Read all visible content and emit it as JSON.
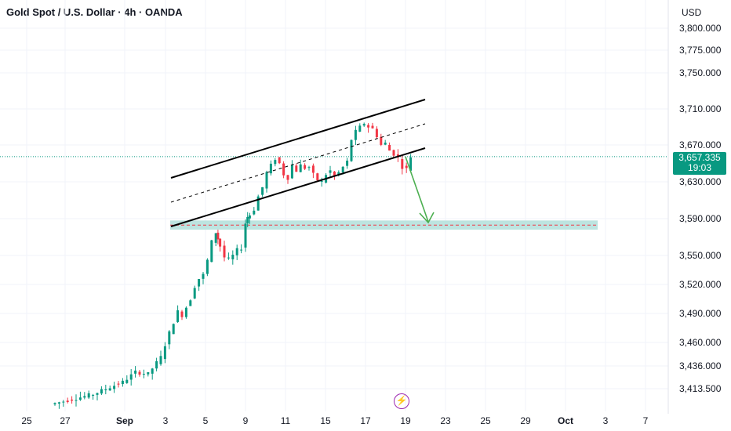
{
  "header": {
    "title": "Gold Spot / U.S. Dollar · 4h · OANDA",
    "currency": "USD"
  },
  "last_price": {
    "value": "3,657.335",
    "countdown": "19:03",
    "color": "#089981"
  },
  "event_icon": "lightning-icon",
  "colors": {
    "up": "#089981",
    "down": "#f23645",
    "channel": "#000000",
    "zone": "#b2dfdb",
    "arrow": "#4caf50"
  },
  "chart_data": {
    "type": "candlestick",
    "y_ticks": [
      "3,800.000",
      "3,775.000",
      "3,750.000",
      "3,710.000",
      "3,670.000",
      "3,630.000",
      "3,590.000",
      "3,550.000",
      "3,520.000",
      "3,490.000",
      "3,460.000",
      "3,436.000",
      "3,413.500"
    ],
    "x_ticks": [
      "25",
      "27",
      "Sep",
      "3",
      "5",
      "9",
      "11",
      "15",
      "17",
      "19",
      "23",
      "25",
      "29",
      "Oct",
      "3",
      "7"
    ],
    "price_path": [
      [
        0,
        3398
      ],
      [
        6,
        3404
      ],
      [
        10,
        3408
      ],
      [
        14,
        3415
      ],
      [
        17,
        3420
      ],
      [
        20,
        3430
      ],
      [
        23,
        3428
      ],
      [
        26,
        3445
      ],
      [
        28,
        3470
      ],
      [
        30,
        3492
      ],
      [
        31,
        3488
      ],
      [
        33,
        3505
      ],
      [
        34,
        3518
      ],
      [
        35,
        3526
      ],
      [
        36,
        3530
      ],
      [
        37,
        3545
      ],
      [
        38,
        3565
      ],
      [
        38.5,
        3575
      ],
      [
        39,
        3568
      ],
      [
        40,
        3560
      ],
      [
        41,
        3548
      ],
      [
        42,
        3546
      ],
      [
        43,
        3550
      ],
      [
        44,
        3556
      ],
      [
        45,
        3558
      ],
      [
        45.5,
        3585
      ],
      [
        46,
        3592
      ],
      [
        47,
        3594
      ],
      [
        48,
        3600
      ],
      [
        49,
        3614
      ],
      [
        50,
        3624
      ],
      [
        51,
        3640
      ],
      [
        52,
        3648
      ],
      [
        53,
        3655
      ],
      [
        54,
        3650
      ],
      [
        55,
        3638
      ],
      [
        56,
        3634
      ],
      [
        57,
        3648
      ],
      [
        58,
        3642
      ],
      [
        59,
        3648
      ],
      [
        60,
        3645
      ],
      [
        61,
        3646
      ],
      [
        62,
        3638
      ],
      [
        63,
        3632
      ],
      [
        64,
        3630
      ],
      [
        65,
        3638
      ],
      [
        66,
        3642
      ],
      [
        67,
        3636
      ],
      [
        68,
        3640
      ],
      [
        69,
        3646
      ],
      [
        70,
        3652
      ],
      [
        71,
        3676
      ],
      [
        72,
        3685
      ],
      [
        73,
        3690
      ],
      [
        74,
        3694
      ],
      [
        75,
        3690
      ],
      [
        76,
        3688
      ],
      [
        77,
        3680
      ],
      [
        78,
        3670
      ],
      [
        79,
        3672
      ],
      [
        80,
        3664
      ],
      [
        81,
        3660
      ],
      [
        82,
        3656
      ],
      [
        83,
        3646
      ],
      [
        84,
        3644
      ],
      [
        85,
        3657.3
      ]
    ],
    "channel": {
      "upper": [
        [
          43,
          3637
        ],
        [
          69,
          3717
        ]
      ],
      "middle": [
        [
          43,
          3610
        ],
        [
          69,
          3690
        ]
      ],
      "lower": [
        [
          43,
          3584
        ],
        [
          69,
          3664
        ]
      ]
    },
    "support_zone": {
      "from": 3578,
      "to": 3588,
      "level": 3583
    },
    "projection": [
      [
        85,
        3657.3
      ],
      [
        90,
        3585
      ]
    ]
  }
}
